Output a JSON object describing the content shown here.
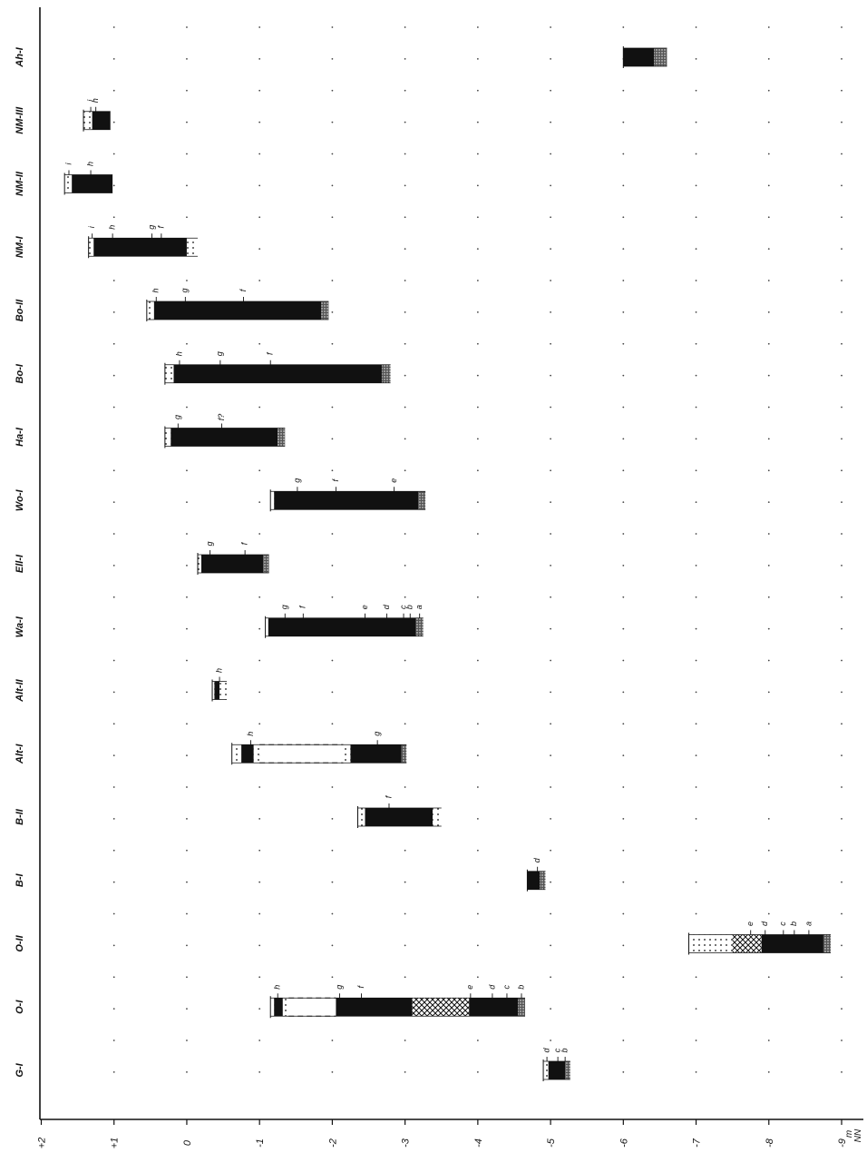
{
  "chart_data": {
    "type": "range-bar",
    "orientation": "columns rotated 90 degrees, depth axis along the bottom",
    "xlim": [
      2,
      -9
    ],
    "x_ticks": [
      "+2",
      "+1",
      "0",
      "-1",
      "-2",
      "-3",
      "-4",
      "-5",
      "-6",
      "-7",
      "-8",
      "-9"
    ],
    "x_unit_label": [
      "m",
      "NN"
    ],
    "grid": "dotted",
    "colors": {
      "ink": "#111111",
      "dots": "#444444",
      "background": "#ffffff"
    },
    "categories": [
      "Ah-I",
      "NM-III",
      "NM-II",
      "NM-I",
      "Bo-II",
      "Bo-I",
      "Ha-I",
      "Wo-I",
      "Ell-I",
      "Wa-I",
      "Alt-II",
      "Alt-I",
      "B-II",
      "B-I",
      "O-II",
      "O-I",
      "G-I"
    ],
    "profiles": [
      {
        "name": "Ah-I",
        "segments": [
          {
            "from": -6.0,
            "to": -6.42,
            "fill": "solid"
          },
          {
            "from": -6.42,
            "to": -6.6,
            "fill": "stipple"
          }
        ],
        "markers": []
      },
      {
        "name": "NM-III",
        "segments": [
          {
            "from": 1.42,
            "to": 1.3,
            "fill": "dotted"
          },
          {
            "from": 1.3,
            "to": 1.05,
            "fill": "solid"
          }
        ],
        "markers": [
          {
            "label": "i",
            "at": 1.32
          },
          {
            "label": "h",
            "at": 1.25
          }
        ]
      },
      {
        "name": "NM-II",
        "segments": [
          {
            "from": 1.68,
            "to": 1.58,
            "fill": "dotted"
          },
          {
            "from": 1.58,
            "to": 1.02,
            "fill": "solid"
          }
        ],
        "markers": [
          {
            "label": "i",
            "at": 1.62
          },
          {
            "label": "h",
            "at": 1.32
          }
        ]
      },
      {
        "name": "NM-I",
        "segments": [
          {
            "from": 1.35,
            "to": 1.28,
            "fill": "dotted"
          },
          {
            "from": 1.28,
            "to": 0.0,
            "fill": "solid"
          },
          {
            "from": 0.0,
            "to": -0.15,
            "fill": "dotted"
          }
        ],
        "markers": [
          {
            "label": "i",
            "at": 1.3
          },
          {
            "label": "h",
            "at": 1.02
          },
          {
            "label": "g",
            "at": 0.48
          },
          {
            "label": "f",
            "at": 0.35
          }
        ]
      },
      {
        "name": "Bo-II",
        "segments": [
          {
            "from": 0.55,
            "to": 0.45,
            "fill": "dotted"
          },
          {
            "from": 0.45,
            "to": -1.85,
            "fill": "solid"
          },
          {
            "from": -1.85,
            "to": -1.95,
            "fill": "stipple"
          }
        ],
        "markers": [
          {
            "label": "h",
            "at": 0.42
          },
          {
            "label": "g",
            "at": 0.02
          },
          {
            "label": "f",
            "at": -0.78
          }
        ]
      },
      {
        "name": "Bo-I",
        "segments": [
          {
            "from": 0.3,
            "to": 0.18,
            "fill": "dotted"
          },
          {
            "from": 0.18,
            "to": -2.68,
            "fill": "solid"
          },
          {
            "from": -2.68,
            "to": -2.8,
            "fill": "stipple"
          }
        ],
        "markers": [
          {
            "label": "h",
            "at": 0.1
          },
          {
            "label": "g",
            "at": -0.46
          },
          {
            "label": "f",
            "at": -1.15
          }
        ]
      },
      {
        "name": "Ha-I",
        "segments": [
          {
            "from": 0.3,
            "to": 0.22,
            "fill": "dotted"
          },
          {
            "from": 0.22,
            "to": -1.25,
            "fill": "solid"
          },
          {
            "from": -1.25,
            "to": -1.35,
            "fill": "stipple"
          }
        ],
        "markers": [
          {
            "label": "g",
            "at": 0.12
          },
          {
            "label": "f?",
            "at": -0.48
          }
        ]
      },
      {
        "name": "Wo-I",
        "segments": [
          {
            "from": -1.15,
            "to": -1.2,
            "fill": "dotted"
          },
          {
            "from": -1.2,
            "to": -3.18,
            "fill": "solid"
          },
          {
            "from": -3.18,
            "to": -3.28,
            "fill": "stipple"
          }
        ],
        "markers": [
          {
            "label": "g",
            "at": -1.52
          },
          {
            "label": "f",
            "at": -2.05
          },
          {
            "label": "e",
            "at": -2.85
          }
        ]
      },
      {
        "name": "Ell-I",
        "segments": [
          {
            "from": -0.15,
            "to": -0.2,
            "fill": "dotted"
          },
          {
            "from": -0.2,
            "to": -1.05,
            "fill": "solid"
          },
          {
            "from": -1.05,
            "to": -1.13,
            "fill": "stipple"
          }
        ],
        "markers": [
          {
            "label": "g",
            "at": -0.32
          },
          {
            "label": "f",
            "at": -0.8
          }
        ]
      },
      {
        "name": "Wa-I",
        "segments": [
          {
            "from": -1.08,
            "to": -1.12,
            "fill": "dotted"
          },
          {
            "from": -1.12,
            "to": -3.15,
            "fill": "solid"
          },
          {
            "from": -3.15,
            "to": -3.25,
            "fill": "stipple"
          }
        ],
        "markers": [
          {
            "label": "g",
            "at": -1.35
          },
          {
            "label": "f",
            "at": -1.6
          },
          {
            "label": "e",
            "at": -2.45
          },
          {
            "label": "d",
            "at": -2.75
          },
          {
            "label": "c",
            "at": -2.98
          },
          {
            "label": "b",
            "at": -3.07
          },
          {
            "label": "a",
            "at": -3.2
          }
        ]
      },
      {
        "name": "Alt-II",
        "segments": [
          {
            "from": -0.35,
            "to": -0.38,
            "fill": "dotted"
          },
          {
            "from": -0.38,
            "to": -0.45,
            "fill": "solid"
          },
          {
            "from": -0.45,
            "to": -0.55,
            "fill": "dotted"
          }
        ],
        "markers": [
          {
            "label": "h",
            "at": -0.45
          }
        ]
      },
      {
        "name": "Alt-I",
        "segments": [
          {
            "from": -0.62,
            "to": -0.75,
            "fill": "dotted"
          },
          {
            "from": -0.75,
            "to": -0.92,
            "fill": "solid"
          },
          {
            "from": -0.92,
            "to": -1.0,
            "fill": "dotted"
          },
          {
            "from": -1.0,
            "to": -2.15,
            "fill": "dashed"
          },
          {
            "from": -2.15,
            "to": -2.25,
            "fill": "dotted"
          },
          {
            "from": -2.25,
            "to": -2.95,
            "fill": "solid"
          },
          {
            "from": -2.95,
            "to": -3.02,
            "fill": "stipple"
          }
        ],
        "markers": [
          {
            "label": "h",
            "at": -0.88
          },
          {
            "label": "g",
            "at": -2.62
          }
        ]
      },
      {
        "name": "B-II",
        "segments": [
          {
            "from": -2.35,
            "to": -2.45,
            "fill": "dotted"
          },
          {
            "from": -2.45,
            "to": -3.38,
            "fill": "solid"
          },
          {
            "from": -3.38,
            "to": -3.5,
            "fill": "dotted"
          }
        ],
        "markers": [
          {
            "label": "f",
            "at": -2.78
          }
        ]
      },
      {
        "name": "B-I",
        "segments": [
          {
            "from": -4.68,
            "to": -4.85,
            "fill": "solid"
          },
          {
            "from": -4.85,
            "to": -4.93,
            "fill": "stipple"
          }
        ],
        "markers": [
          {
            "label": "d",
            "at": -4.82
          }
        ]
      },
      {
        "name": "O-II",
        "segments": [
          {
            "from": -6.9,
            "to": -7.5,
            "fill": "dotted"
          },
          {
            "from": -7.5,
            "to": -7.9,
            "fill": "crosshatch"
          },
          {
            "from": -7.9,
            "to": -8.75,
            "fill": "solid"
          },
          {
            "from": -8.75,
            "to": -8.85,
            "fill": "stipple"
          }
        ],
        "markers": [
          {
            "label": "e",
            "at": -7.75
          },
          {
            "label": "d",
            "at": -7.95
          },
          {
            "label": "c",
            "at": -8.2
          },
          {
            "label": "b",
            "at": -8.35
          },
          {
            "label": "a",
            "at": -8.55
          }
        ]
      },
      {
        "name": "O-I",
        "segments": [
          {
            "from": -1.15,
            "to": -1.2,
            "fill": "dotted"
          },
          {
            "from": -1.2,
            "to": -1.32,
            "fill": "solid"
          },
          {
            "from": -1.32,
            "to": -1.4,
            "fill": "dotted"
          },
          {
            "from": -1.4,
            "to": -2.05,
            "fill": "dashed"
          },
          {
            "from": -2.05,
            "to": -3.1,
            "fill": "solid"
          },
          {
            "from": -3.1,
            "to": -3.88,
            "fill": "crosshatch"
          },
          {
            "from": -3.88,
            "to": -4.55,
            "fill": "solid"
          },
          {
            "from": -4.55,
            "to": -4.65,
            "fill": "stipple"
          }
        ],
        "markers": [
          {
            "label": "h",
            "at": -1.25
          },
          {
            "label": "g",
            "at": -2.1
          },
          {
            "label": "f",
            "at": -2.4
          },
          {
            "label": "e",
            "at": -3.9
          },
          {
            "label": "d",
            "at": -4.2
          },
          {
            "label": "c",
            "at": -4.4
          },
          {
            "label": "b",
            "at": -4.6
          }
        ]
      },
      {
        "name": "G-I",
        "segments": [
          {
            "from": -4.9,
            "to": -4.97,
            "fill": "dotted"
          },
          {
            "from": -4.97,
            "to": -5.2,
            "fill": "solid"
          },
          {
            "from": -5.2,
            "to": -5.27,
            "fill": "stipple"
          }
        ],
        "markers": [
          {
            "label": "d",
            "at": -4.95
          },
          {
            "label": "c",
            "at": -5.1
          },
          {
            "label": "b",
            "at": -5.2
          }
        ]
      }
    ]
  }
}
